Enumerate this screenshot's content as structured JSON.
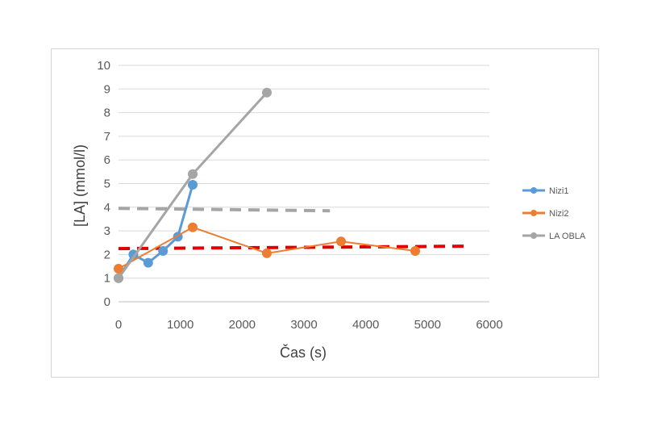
{
  "chart_data": {
    "type": "scatter",
    "title": "",
    "xlabel": "Čas (s)",
    "ylabel": "[LA] (mmol/l)",
    "xlim": [
      0,
      6000
    ],
    "ylim": [
      0,
      10
    ],
    "xticks": [
      0,
      1000,
      2000,
      3000,
      4000,
      5000,
      6000
    ],
    "yticks": [
      0,
      1,
      2,
      3,
      4,
      5,
      6,
      7,
      8,
      9,
      10
    ],
    "grid": "horizontal",
    "legend_position": "right",
    "series": [
      {
        "name": "Nizi1",
        "color": "#5b9bd5",
        "line_width": 3,
        "marker_radius": 6,
        "x": [
          0,
          240,
          480,
          720,
          960,
          1200
        ],
        "y": [
          1.0,
          2.0,
          1.65,
          2.15,
          2.75,
          4.95
        ]
      },
      {
        "name": "Nizi2",
        "color": "#ed7d31",
        "line_width": 2,
        "marker_radius": 6,
        "x": [
          0,
          1200,
          2400,
          3600,
          4800
        ],
        "y": [
          1.4,
          3.15,
          2.05,
          2.55,
          2.15
        ]
      },
      {
        "name": "LA OBLA",
        "color": "#a5a5a5",
        "line_width": 3,
        "marker_radius": 6,
        "x": [
          0,
          1200,
          2400
        ],
        "y": [
          1.0,
          5.4,
          8.85
        ]
      }
    ],
    "reference_lines": [
      {
        "color": "#a5a5a5",
        "x": [
          0,
          3420
        ],
        "y": [
          3.95,
          3.85
        ]
      },
      {
        "color": "#e00000",
        "x": [
          0,
          5600
        ],
        "y": [
          2.25,
          2.35
        ]
      }
    ]
  }
}
